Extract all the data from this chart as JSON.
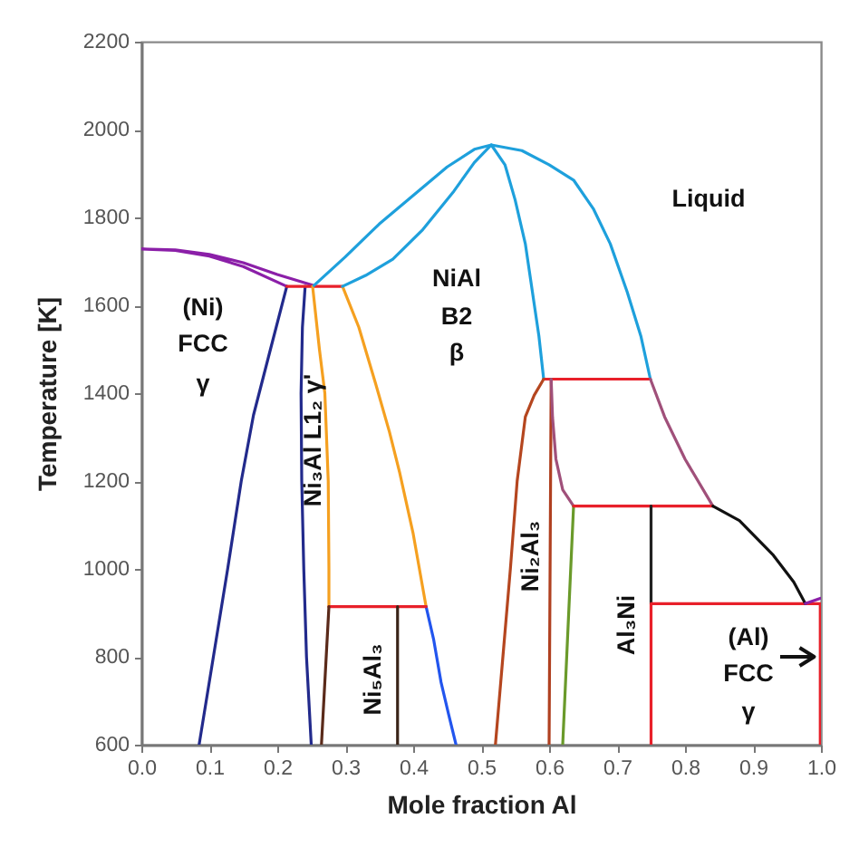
{
  "chart_data": {
    "type": "line",
    "xlabel": "Mole fraction Al",
    "ylabel": "Temperature [K]",
    "xlim": [
      0,
      1
    ],
    "xticks": [
      {
        "value": 0,
        "label": "0.0"
      },
      0.1,
      0.2,
      0.3,
      0.4,
      0.5,
      0.6,
      0.7,
      0.8,
      0.9,
      {
        "value": 1,
        "label": "1.0"
      }
    ],
    "ylim": [
      600,
      2200
    ],
    "yticks": [
      600,
      800,
      1000,
      1200,
      1400,
      1600,
      1800,
      2000,
      2200
    ],
    "grid": false,
    "legend": false,
    "marker": "none",
    "line_style": "solid",
    "series": [
      {
        "color": "#8b1fa8",
        "x": [
          0.214,
          0.15,
          0.1,
          0.05,
          0,
          0.05,
          0.1,
          0.15,
          0.2,
          0.254
        ],
        "values": [
          1643,
          1688,
          1712,
          1725,
          1728,
          1726,
          1716,
          1697,
          1670,
          1645
        ]
      },
      {
        "color": "#222a8c",
        "x": [
          0.214,
          0.19,
          0.165,
          0.147,
          0.127,
          0.106,
          0.085
        ],
        "values": [
          1643,
          1500,
          1350,
          1200,
          1000,
          800,
          600
        ]
      },
      {
        "color": "#222a8c",
        "x": [
          0.241,
          0.237,
          0.235,
          0.236,
          0.239,
          0.243,
          0.25
        ],
        "values": [
          1643,
          1550,
          1400,
          1200,
          1000,
          800,
          600
        ]
      },
      {
        "color": "#e8202a",
        "x": [
          0.214,
          0.296
        ],
        "values": [
          1643,
          1643
        ]
      },
      {
        "color": "#f5a020",
        "x": [
          0.252,
          0.262,
          0.27,
          0.275,
          0.276,
          0.276
        ],
        "values": [
          1643,
          1500,
          1400,
          1200,
          1000,
          914
        ]
      },
      {
        "color": "#f5a020",
        "x": [
          0.296,
          0.32,
          0.345,
          0.365,
          0.38,
          0.4,
          0.419
        ],
        "values": [
          1643,
          1550,
          1420,
          1312,
          1220,
          1080,
          914
        ]
      },
      {
        "color": "#2255ee",
        "x": [
          0.419,
          0.43,
          0.441,
          0.452,
          0.463
        ],
        "values": [
          914,
          840,
          742,
          670,
          600
        ]
      },
      {
        "color": "#e8202a",
        "x": [
          0.276,
          0.419
        ],
        "values": [
          914,
          914
        ]
      },
      {
        "color": "#5a2a1a",
        "x": [
          0.276,
          0.265
        ],
        "values": [
          914,
          600
        ]
      },
      {
        "color": "#3a2418",
        "x": [
          0.377,
          0.377
        ],
        "values": [
          914,
          600
        ]
      },
      {
        "color": "#1ea0dc",
        "x": [
          0.254,
          0.3,
          0.35,
          0.4,
          0.45,
          0.49,
          0.515,
          0.56,
          0.6,
          0.636,
          0.665,
          0.69,
          0.715,
          0.735,
          0.749
        ],
        "values": [
          1645,
          1710,
          1785,
          1850,
          1915,
          1955,
          1965,
          1952,
          1920,
          1885,
          1820,
          1740,
          1630,
          1530,
          1432
        ]
      },
      {
        "color": "#1ea0dc",
        "x": [
          0.296,
          0.33,
          0.37,
          0.414,
          0.46,
          0.49,
          0.515,
          0.535,
          0.55,
          0.565,
          0.575,
          0.585,
          0.592
        ],
        "values": [
          1643,
          1668,
          1705,
          1772,
          1860,
          1925,
          1965,
          1920,
          1840,
          1740,
          1635,
          1530,
          1432
        ]
      },
      {
        "color": "#e8202a",
        "x": [
          0.592,
          0.749
        ],
        "values": [
          1432,
          1432
        ]
      },
      {
        "color": "#a0507a",
        "x": [
          0.749,
          0.77,
          0.8,
          0.841
        ],
        "values": [
          1432,
          1346,
          1250,
          1143
        ]
      },
      {
        "color": "#b5461f",
        "x": [
          0.592,
          0.578,
          0.565,
          0.553,
          0.543,
          0.532,
          0.521
        ],
        "values": [
          1432,
          1395,
          1346,
          1200,
          1000,
          800,
          600
        ]
      },
      {
        "color": "#b04020",
        "x": [
          0.603,
          0.6
        ],
        "values": [
          1432,
          600
        ]
      },
      {
        "color": "#a0507a",
        "x": [
          0.603,
          0.605,
          0.61,
          0.62,
          0.636
        ],
        "values": [
          1432,
          1346,
          1250,
          1180,
          1143
        ]
      },
      {
        "color": "#6a9a2a",
        "x": [
          0.636,
          0.62
        ],
        "values": [
          1143,
          600
        ]
      },
      {
        "color": "#e8202a",
        "x": [
          0.636,
          0.841
        ],
        "values": [
          1143,
          1143
        ]
      },
      {
        "color": "#222222",
        "x": [
          0.75,
          0.75
        ],
        "values": [
          1143,
          921
        ]
      },
      {
        "color": "#e8202a",
        "x": [
          0.75,
          0.75,
          0.999,
          0.999
        ],
        "values": [
          600,
          921,
          921,
          600
        ]
      },
      {
        "color": "#111111",
        "x": [
          0.841,
          0.88,
          0.93,
          0.96,
          0.977
        ],
        "values": [
          1143,
          1110,
          1031,
          970,
          921
        ]
      },
      {
        "color": "#8b1fa8",
        "x": [
          0.977,
          0.999
        ],
        "values": [
          921,
          933
        ]
      }
    ],
    "annotations": [
      "Ni₃Al L1₂ γ'",
      "Ni₅Al₃",
      "Ni₂Al₃",
      "Al₃Ni",
      "Liquid",
      "(Ni)",
      "FCC",
      "γ",
      "NiAl",
      "B2",
      "β",
      "(Al)",
      "FCC",
      "γ"
    ]
  }
}
